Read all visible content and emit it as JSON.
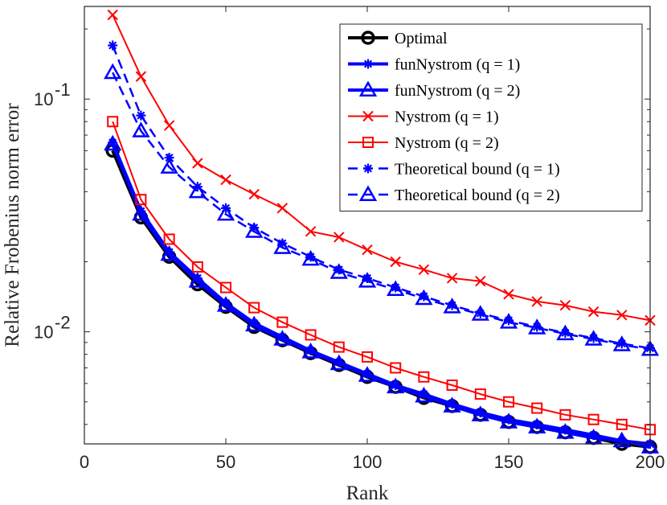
{
  "chart_data": {
    "type": "line",
    "xlabel": "Rank",
    "ylabel": "Relative Frobenius norm error",
    "xlim": [
      0,
      200
    ],
    "ylim": [
      0.0033,
      0.25
    ],
    "yscale": "log",
    "xticks": [
      0,
      50,
      100,
      150,
      200
    ],
    "xtick_labels": [
      "0",
      "50",
      "100",
      "150",
      "200"
    ],
    "yticks": [
      0.1,
      0.01
    ],
    "ytick_labels": [
      {
        "base": "10",
        "exp": "-1"
      },
      {
        "base": "10",
        "exp": "-2"
      }
    ],
    "legend_position": "top-right",
    "x": [
      10,
      20,
      30,
      40,
      50,
      60,
      70,
      80,
      90,
      100,
      110,
      120,
      130,
      140,
      150,
      160,
      170,
      180,
      190,
      200
    ],
    "series": [
      {
        "name": "Optimal",
        "param": "",
        "color": "#000000",
        "marker": "circle",
        "dash": "solid",
        "width": 4,
        "values": [
          0.06,
          0.031,
          0.021,
          0.016,
          0.0128,
          0.0105,
          0.0092,
          0.0081,
          0.0072,
          0.0064,
          0.0058,
          0.0052,
          0.0048,
          0.0044,
          0.0041,
          0.0039,
          0.0037,
          0.0035,
          0.0033,
          0.0032
        ]
      },
      {
        "name": "funNystrom",
        "param": "(q = 1)",
        "color": "#0000ff",
        "marker": "star",
        "dash": "solid",
        "width": 4,
        "values": [
          0.065,
          0.033,
          0.022,
          0.017,
          0.0133,
          0.0109,
          0.0095,
          0.0083,
          0.0074,
          0.0066,
          0.0059,
          0.0054,
          0.0049,
          0.0045,
          0.0042,
          0.004,
          0.0038,
          0.0036,
          0.0034,
          0.0033
        ]
      },
      {
        "name": "funNystrom",
        "param": "(q = 2)",
        "color": "#0000ff",
        "marker": "triangle",
        "dash": "solid",
        "width": 4,
        "values": [
          0.064,
          0.032,
          0.0215,
          0.0165,
          0.013,
          0.0107,
          0.0093,
          0.0082,
          0.0073,
          0.0065,
          0.0058,
          0.0053,
          0.0048,
          0.0044,
          0.0041,
          0.0039,
          0.0037,
          0.0035,
          0.0034,
          0.0032
        ]
      },
      {
        "name": "Nystrom",
        "param": "(q = 1)",
        "color": "#ff0000",
        "marker": "x",
        "dash": "solid",
        "width": 2,
        "values": [
          0.23,
          0.125,
          0.077,
          0.053,
          0.045,
          0.039,
          0.034,
          0.027,
          0.0255,
          0.0225,
          0.02,
          0.0185,
          0.017,
          0.0165,
          0.0145,
          0.0135,
          0.013,
          0.0122,
          0.0118,
          0.0112
        ]
      },
      {
        "name": "Nystrom",
        "param": "(q = 2)",
        "color": "#ff0000",
        "marker": "square",
        "dash": "solid",
        "width": 2,
        "values": [
          0.08,
          0.037,
          0.025,
          0.019,
          0.0155,
          0.0127,
          0.011,
          0.0097,
          0.0086,
          0.0078,
          0.007,
          0.0064,
          0.0059,
          0.0054,
          0.005,
          0.0047,
          0.0044,
          0.0042,
          0.004,
          0.0038
        ]
      },
      {
        "name": "Theoretical bound",
        "param": "(q = 1)",
        "color": "#0000ff",
        "marker": "star",
        "dash": "dashed",
        "width": 2.5,
        "values": [
          0.17,
          0.085,
          0.056,
          0.042,
          0.034,
          0.028,
          0.024,
          0.021,
          0.0185,
          0.017,
          0.0155,
          0.0142,
          0.013,
          0.012,
          0.0112,
          0.0105,
          0.0099,
          0.0094,
          0.0089,
          0.0085
        ]
      },
      {
        "name": "Theoretical bound",
        "param": "(q = 2)",
        "color": "#0000ff",
        "marker": "triangle",
        "dash": "dashed",
        "width": 2.5,
        "values": [
          0.13,
          0.073,
          0.051,
          0.04,
          0.032,
          0.027,
          0.023,
          0.0205,
          0.018,
          0.0165,
          0.0152,
          0.0139,
          0.0128,
          0.0119,
          0.011,
          0.0104,
          0.0098,
          0.0093,
          0.0088,
          0.0084
        ]
      }
    ]
  }
}
